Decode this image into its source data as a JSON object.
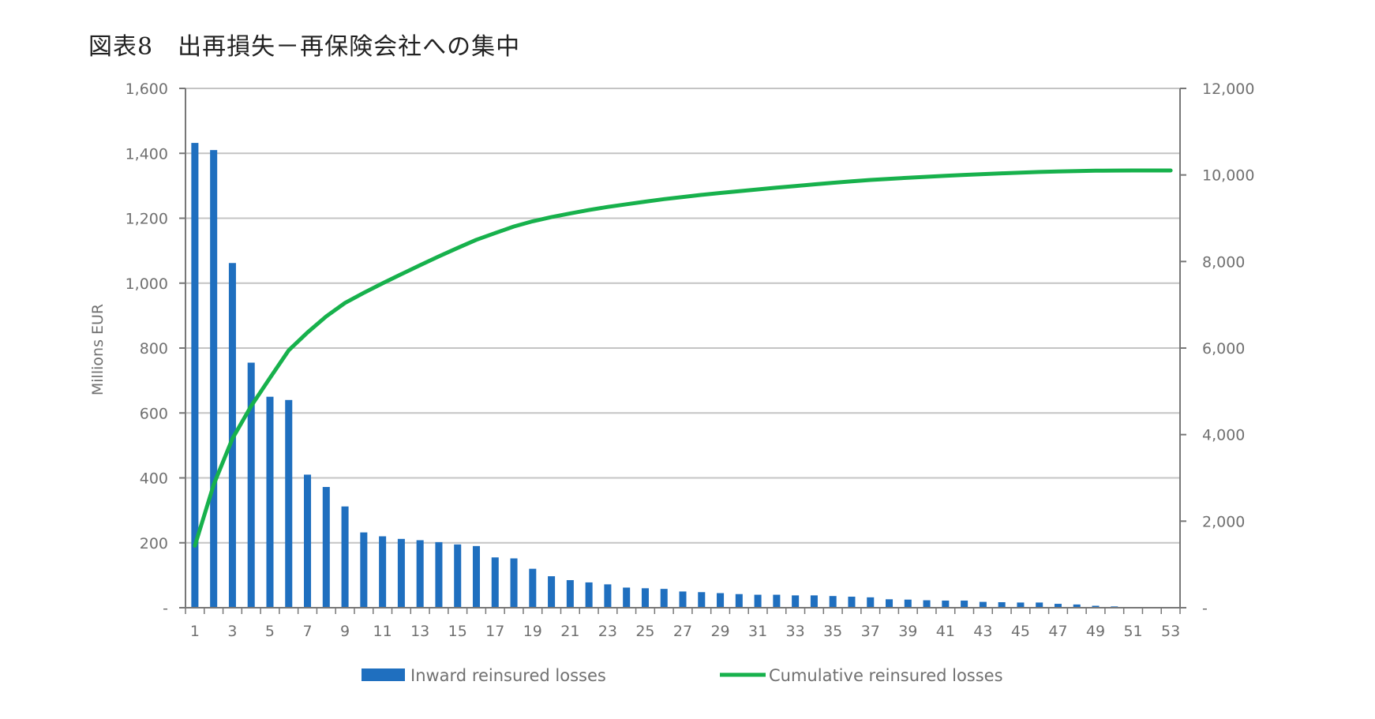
{
  "title": "図表8　出再損失－再保険会社への集中",
  "chart_data": {
    "type": "bar",
    "ylabel": "Millions EUR",
    "ylim": [
      0,
      1600
    ],
    "y_ticks": [
      "-",
      "200",
      "400",
      "600",
      "800",
      "1,000",
      "1,200",
      "1,400",
      "1,600"
    ],
    "y2lim": [
      0,
      12000
    ],
    "y2_ticks": [
      "-",
      "2,000",
      "4,000",
      "6,000",
      "8,000",
      "10,000",
      "12,000"
    ],
    "x": [
      1,
      2,
      3,
      4,
      5,
      6,
      7,
      8,
      9,
      10,
      11,
      12,
      13,
      14,
      15,
      16,
      17,
      18,
      19,
      20,
      21,
      22,
      23,
      24,
      25,
      26,
      27,
      28,
      29,
      30,
      31,
      32,
      33,
      34,
      35,
      36,
      37,
      38,
      39,
      40,
      41,
      42,
      43,
      44,
      45,
      46,
      47,
      48,
      49,
      50,
      51,
      52,
      53
    ],
    "x_tick_labels": [
      "1",
      "3",
      "5",
      "7",
      "9",
      "11",
      "13",
      "15",
      "17",
      "19",
      "21",
      "23",
      "25",
      "27",
      "29",
      "31",
      "33",
      "35",
      "37",
      "39",
      "41",
      "43",
      "45",
      "47",
      "49",
      "51",
      "53"
    ],
    "grid": true,
    "legend_position": "bottom",
    "series": [
      {
        "name": "Inward reinsured losses",
        "type": "bar",
        "axis": "left",
        "color": "#1f6fbf",
        "values": [
          1432,
          1410,
          1062,
          755,
          650,
          640,
          410,
          372,
          312,
          232,
          220,
          212,
          208,
          202,
          195,
          190,
          155,
          152,
          120,
          97,
          85,
          78,
          72,
          62,
          60,
          58,
          50,
          48,
          45,
          42,
          40,
          40,
          38,
          38,
          36,
          34,
          32,
          26,
          25,
          23,
          22,
          22,
          18,
          17,
          16,
          16,
          12,
          10,
          6,
          4,
          2,
          1,
          0
        ]
      },
      {
        "name": "Cumulative reinsured losses",
        "type": "line",
        "axis": "right",
        "color": "#17b14c",
        "values": [
          1432,
          2842,
          3904,
          4659,
          5309,
          5949,
          6359,
          6731,
          7043,
          7275,
          7495,
          7707,
          7915,
          8117,
          8312,
          8502,
          8657,
          8809,
          8929,
          9026,
          9111,
          9189,
          9261,
          9323,
          9383,
          9441,
          9491,
          9539,
          9584,
          9626,
          9666,
          9706,
          9744,
          9782,
          9818,
          9852,
          9884,
          9910,
          9935,
          9958,
          9980,
          10002,
          10020,
          10037,
          10053,
          10069,
          10081,
          10091,
          10097,
          10101,
          10103,
          10104,
          10104
        ]
      }
    ]
  }
}
